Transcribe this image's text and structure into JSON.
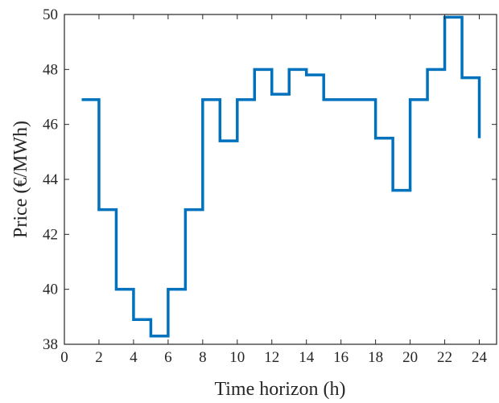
{
  "chart_data": {
    "type": "line",
    "step": "post",
    "xlabel": "Time horizon (h)",
    "ylabel": "Price (€/MWh)",
    "xlim": [
      0,
      25
    ],
    "ylim": [
      38,
      50
    ],
    "xticks": [
      0,
      2,
      4,
      6,
      8,
      10,
      12,
      14,
      16,
      18,
      20,
      22,
      24
    ],
    "yticks": [
      38,
      40,
      42,
      44,
      46,
      48,
      50
    ],
    "grid": false,
    "series": [
      {
        "color": "#0072bd",
        "x": [
          1,
          2,
          3,
          4,
          5,
          6,
          7,
          8,
          9,
          10,
          11,
          12,
          13,
          14,
          15,
          16,
          17,
          18,
          19,
          20,
          21,
          22,
          23,
          24
        ],
        "values": [
          46.9,
          42.9,
          40.0,
          38.9,
          38.3,
          40.0,
          42.9,
          46.9,
          45.4,
          46.9,
          48.0,
          47.1,
          48.0,
          47.8,
          46.9,
          46.9,
          46.9,
          45.5,
          43.6,
          46.9,
          48.0,
          49.9,
          47.7,
          45.5
        ]
      }
    ]
  }
}
